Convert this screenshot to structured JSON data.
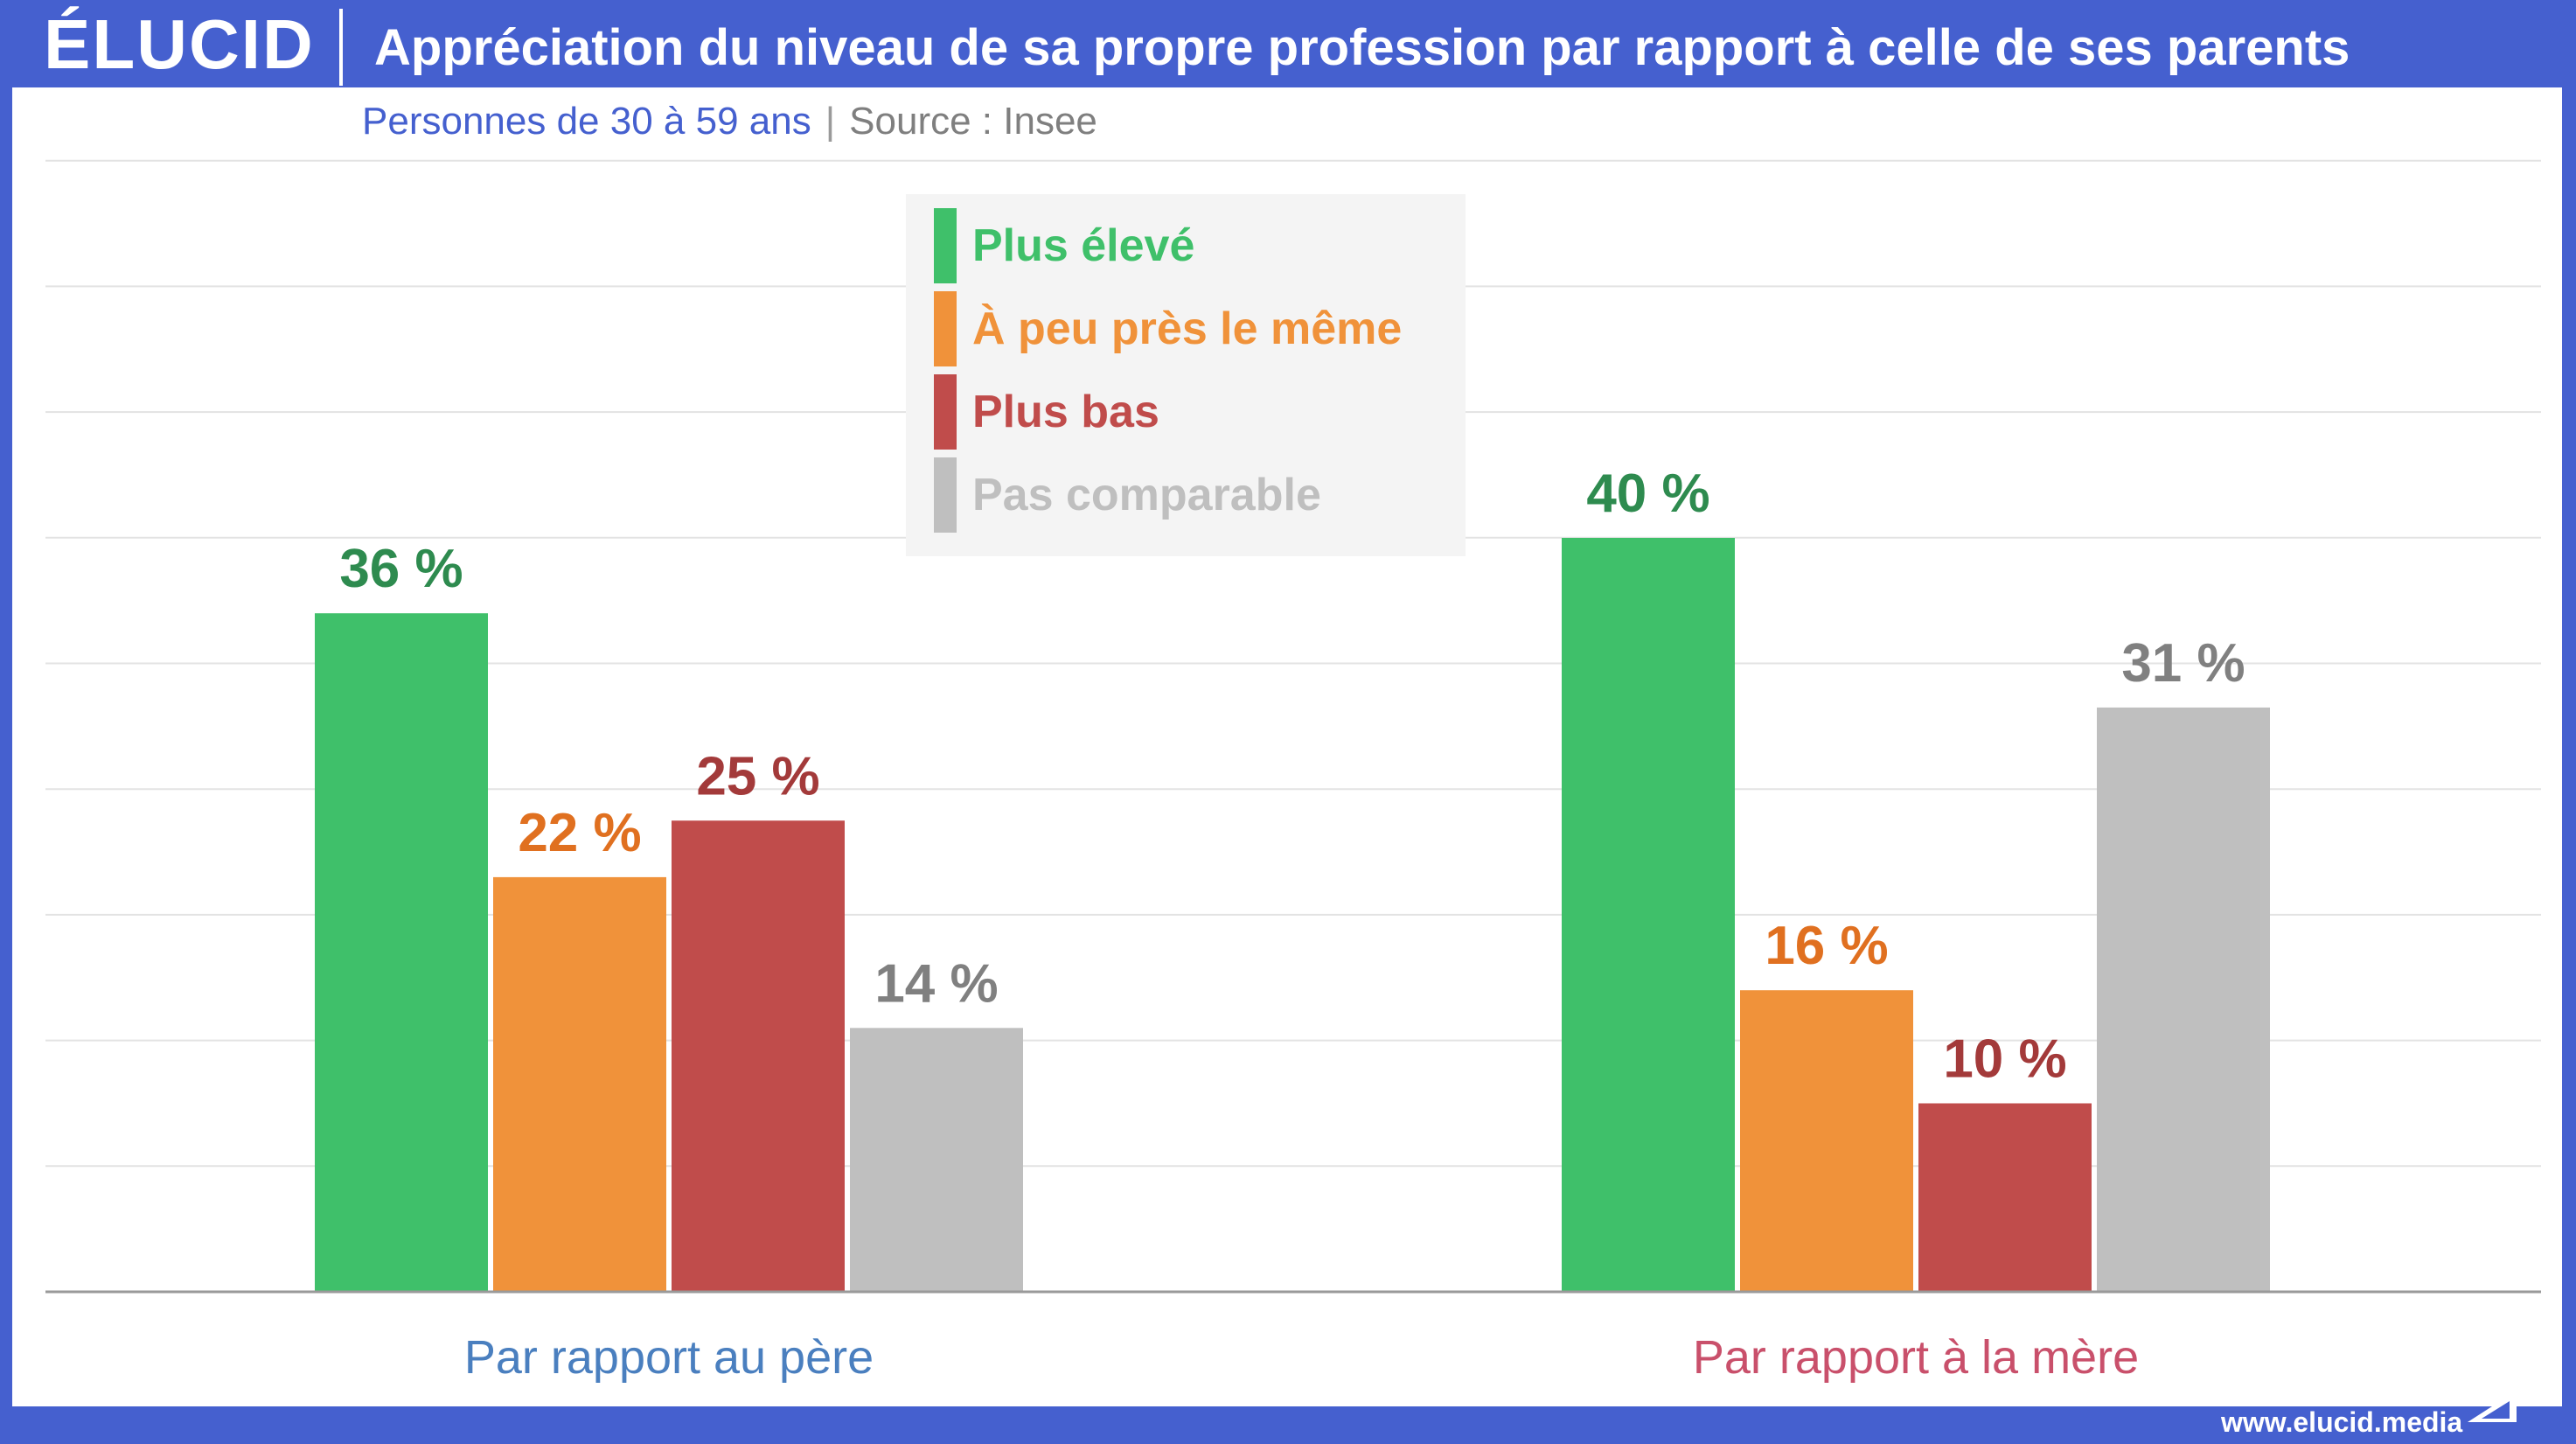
{
  "header": {
    "logo": "ÉLUCID",
    "title": "Appréciation du niveau de sa propre profession par rapport à celle de ses parents"
  },
  "subtitle": {
    "population": "Personnes de 30 à 59 ans",
    "separator": "|",
    "source": "Source : Insee"
  },
  "footer": {
    "url": "www.elucid.media"
  },
  "colors": {
    "brand": "#4560cf",
    "plus_eleve": "#3fc06a",
    "meme": "#f0923a",
    "plus_bas": "#c04c4b",
    "pas_comparable": "#bfbfbf"
  },
  "chart_data": {
    "type": "bar",
    "title": "Appréciation du niveau de sa propre profession par rapport à celle de ses parents",
    "categories": [
      "Par rapport au père",
      "Par rapport à la mère"
    ],
    "category_colors": [
      "#4a7fbf",
      "#c9506b"
    ],
    "series": [
      {
        "name": "Plus élevé",
        "values": [
          36,
          40
        ],
        "color": "#3fc06a",
        "label_color": "#2e8b4f"
      },
      {
        "name": "À peu près le même",
        "values": [
          22,
          16
        ],
        "color": "#f0923a",
        "label_color": "#e07020"
      },
      {
        "name": "Plus bas",
        "values": [
          25,
          10
        ],
        "color": "#c04c4b",
        "label_color": "#a33a3a"
      },
      {
        "name": "Pas comparable",
        "values": [
          14,
          31
        ],
        "color": "#bfbfbf",
        "label_color": "#808080"
      }
    ],
    "value_suffix": " %",
    "ylim": [
      0,
      45
    ],
    "grid": true,
    "legend": "top-center",
    "xlabel": "",
    "ylabel": ""
  }
}
